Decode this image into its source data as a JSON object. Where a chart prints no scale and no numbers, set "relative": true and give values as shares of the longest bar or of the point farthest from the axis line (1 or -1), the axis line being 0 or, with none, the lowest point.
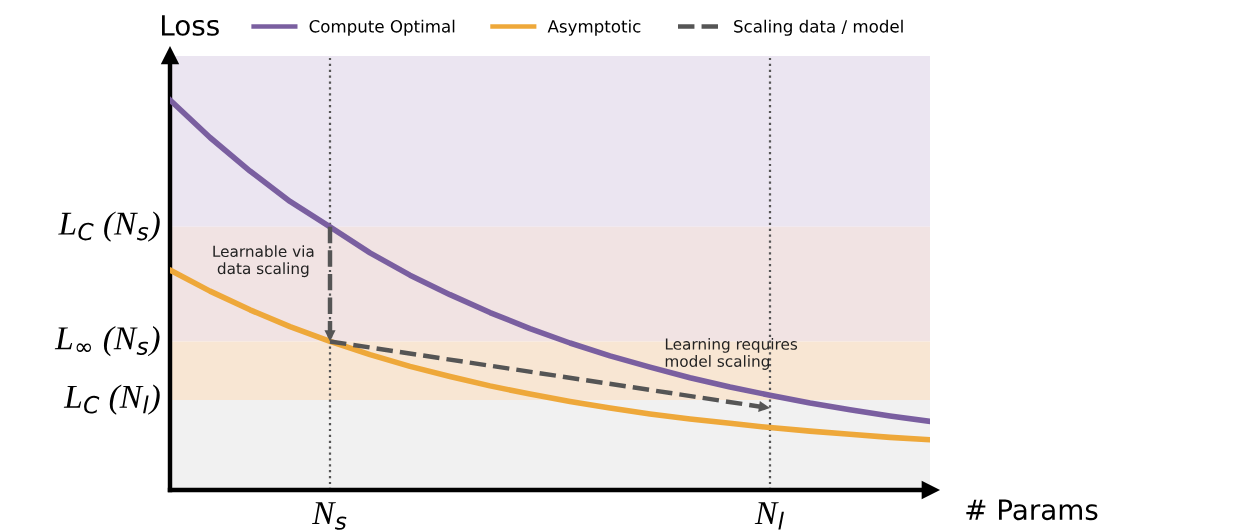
{
  "chart_data": {
    "type": "line",
    "relative": true,
    "ylabel": "Loss",
    "xlabel": "# Params",
    "categories": [
      null,
      null,
      null,
      null,
      "N$_{s}$",
      null,
      null,
      null,
      null,
      null,
      null,
      null,
      null,
      null,
      null,
      "N$_{l}$",
      null,
      null,
      null,
      null
    ],
    "series": [
      {
        "name": "Compute Optimal",
        "color": "#7a5fa0",
        "line_style": "solid",
        "values": [
          1.0,
          0.904,
          0.818,
          0.74,
          0.675,
          0.608,
          0.551,
          0.501,
          0.455,
          0.414,
          0.377,
          0.344,
          0.315,
          0.288,
          0.264,
          0.243,
          0.223,
          0.206,
          0.19,
          0.176
        ]
      },
      {
        "name": "Asymptotic",
        "color": "#eea83a",
        "line_style": "solid",
        "values": [
          0.564,
          0.51,
          0.462,
          0.419,
          0.381,
          0.347,
          0.317,
          0.291,
          0.267,
          0.246,
          0.227,
          0.21,
          0.195,
          0.182,
          0.171,
          0.16,
          0.151,
          0.143,
          0.135,
          0.129
        ]
      },
      {
        "name": "Scaling data / model",
        "color": "#555555",
        "line_style": "dashed",
        "values": [
          null,
          null,
          null,
          null,
          0.381,
          null,
          null,
          null,
          null,
          null,
          null,
          null,
          null,
          null,
          null,
          0.21,
          null,
          null,
          null,
          null
        ]
      }
    ],
    "bands": [
      {
        "axis": "y",
        "from": 0.675,
        "to": 1.113,
        "label": "L$_{C}$ (N$_{s}$)",
        "color": "#ebe5f1"
      },
      {
        "axis": "y",
        "from": 0.381,
        "to": 0.675,
        "label": "L$_{∞}$ (N$_{s}$)",
        "color": "#f1e3e3"
      },
      {
        "axis": "y",
        "from": 0.231,
        "to": 0.381,
        "label": "L$_{C}$ (N$_{l}$)",
        "color": "#f8e6d3"
      },
      {
        "axis": "y",
        "from": 0,
        "to": 0.231,
        "color": "#f1f1f1"
      }
    ],
    "annotations": [
      "Learnable via\ndata scaling",
      "Learning requires\nmodel scaling"
    ],
    "grid": "x",
    "legend": "top",
    "tick_labels": "x"
  }
}
